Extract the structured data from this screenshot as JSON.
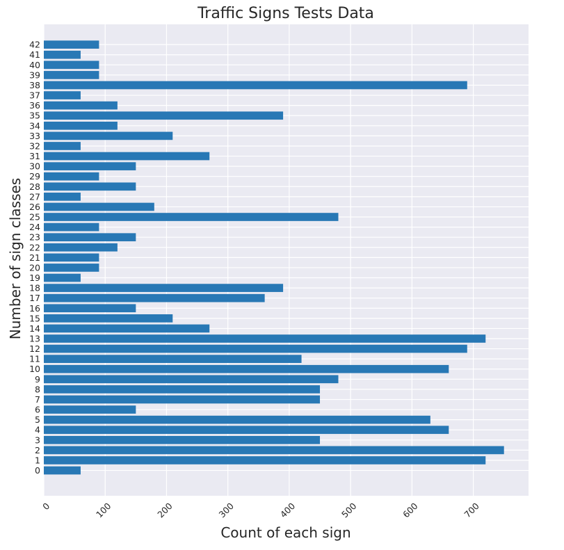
{
  "chart_data": {
    "type": "bar",
    "orientation": "horizontal",
    "title": "Traffic Signs Tests Data",
    "xlabel": "Count of each sign",
    "ylabel": "Number of sign classes",
    "categories": [
      "0",
      "1",
      "2",
      "3",
      "4",
      "5",
      "6",
      "7",
      "8",
      "9",
      "10",
      "11",
      "12",
      "13",
      "14",
      "15",
      "16",
      "17",
      "18",
      "19",
      "20",
      "21",
      "22",
      "23",
      "24",
      "25",
      "26",
      "27",
      "28",
      "29",
      "30",
      "31",
      "32",
      "33",
      "34",
      "35",
      "36",
      "37",
      "38",
      "39",
      "40",
      "41",
      "42"
    ],
    "values": [
      60,
      720,
      750,
      450,
      660,
      630,
      150,
      450,
      450,
      480,
      660,
      420,
      690,
      720,
      270,
      210,
      150,
      360,
      390,
      60,
      90,
      90,
      120,
      150,
      90,
      480,
      180,
      60,
      150,
      90,
      150,
      270,
      60,
      210,
      120,
      390,
      120,
      60,
      690,
      90,
      90,
      60,
      90
    ],
    "xlim": [
      0,
      790
    ],
    "ylim": [
      -2.5,
      44
    ],
    "xticks": [
      0,
      100,
      200,
      300,
      400,
      500,
      600,
      700
    ],
    "grid": true,
    "colors": {
      "bar": "#2878b5",
      "plot_background": "#eaeaf2",
      "grid": "#ffffff"
    }
  }
}
